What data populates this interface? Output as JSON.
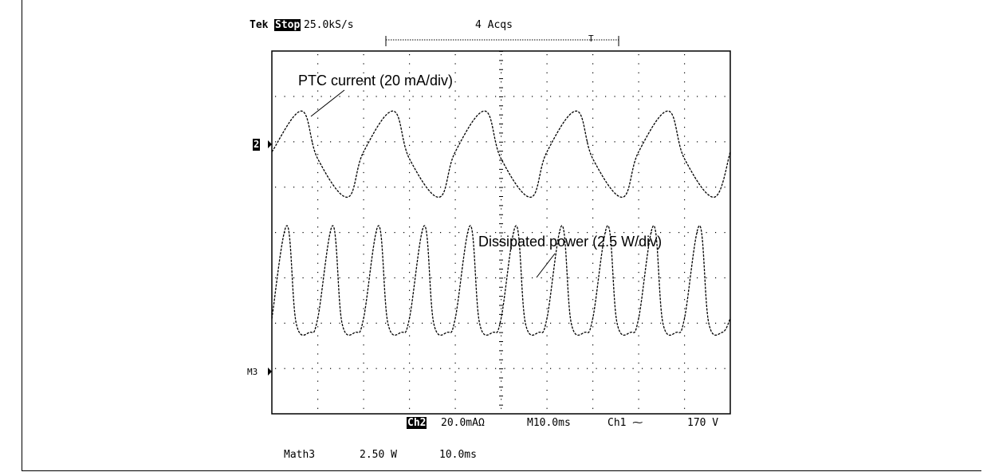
{
  "header": {
    "brand": "Tek",
    "state": "Stop",
    "sample_rate": "25.0kS/s",
    "acquisitions": "4 Acqs",
    "trigger_marker": "T"
  },
  "markers": {
    "ch2": "2",
    "math3": "M3"
  },
  "footer": {
    "line1": {
      "channel": "Ch2",
      "scale": "20.0mAΩ",
      "timebase": "M10.0ms",
      "trigger": "Ch1 ⁓",
      "trigger_level": "170 V"
    },
    "line2": {
      "source": "Math3",
      "scale": "2.50 W",
      "timebase": "10.0ms"
    }
  },
  "colors": {
    "trace": "#000000",
    "background": "#ffffff",
    "grid": "#000000"
  },
  "chart_data": {
    "type": "line",
    "title": "",
    "grid": true,
    "xlabel": "",
    "ylabel": "",
    "x_divisions": 10,
    "y_divisions": 8,
    "x_unit": "ms",
    "x_per_div": 10,
    "xlim": [
      0,
      100
    ],
    "series": [
      {
        "name": "PTC current (20 mA/div)",
        "unit": "div",
        "period_ms": 20,
        "x": [
          0,
          6.5,
          10,
          16.5,
          20,
          26.5,
          30,
          36.5,
          40,
          46.5,
          50,
          56.5,
          60,
          66.5,
          70,
          76.5,
          80,
          86.5,
          90,
          96.5,
          100
        ],
        "values": [
          0.15,
          1.05,
          0.0,
          -0.85,
          0.15,
          1.05,
          0.0,
          -0.85,
          0.15,
          1.05,
          0.0,
          -0.85,
          0.15,
          1.05,
          0.0,
          -0.85,
          0.15,
          1.05,
          0.0,
          -0.85,
          0.15
        ]
      },
      {
        "name": "Dissipated power (2.5 W/div)",
        "unit": "div",
        "period_ms": 10,
        "x": [
          0,
          3.3,
          5.3,
          8.3,
          10,
          13.3,
          15.3,
          18.3,
          20,
          23.3,
          25.3,
          28.3,
          30,
          33.3,
          35.3,
          38.3,
          40,
          43.3,
          45.3,
          48.3,
          50,
          53.3,
          55.3,
          58.3,
          60,
          63.3,
          65.3,
          68.3,
          70,
          73.3,
          75.3,
          78.3,
          80,
          83.3,
          85.3,
          88.3,
          90,
          93.3,
          95.3,
          98.3,
          100
        ],
        "values": [
          0.2,
          2.25,
          0.1,
          -0.1,
          0.2,
          2.25,
          0.1,
          -0.1,
          0.2,
          2.25,
          0.1,
          -0.1,
          0.2,
          2.25,
          0.1,
          -0.1,
          0.2,
          2.25,
          0.1,
          -0.1,
          0.2,
          2.25,
          0.1,
          -0.1,
          0.2,
          2.25,
          0.1,
          -0.1,
          0.2,
          2.25,
          0.1,
          -0.1,
          0.2,
          2.25,
          0.1,
          -0.1,
          0.2,
          2.25,
          0.1,
          -0.1,
          0.2
        ]
      }
    ],
    "annotations": [
      {
        "text": "PTC current (20 mA/div)",
        "series": 0
      },
      {
        "text": "Dissipated power (2.5 W/div)",
        "series": 1
      }
    ]
  }
}
